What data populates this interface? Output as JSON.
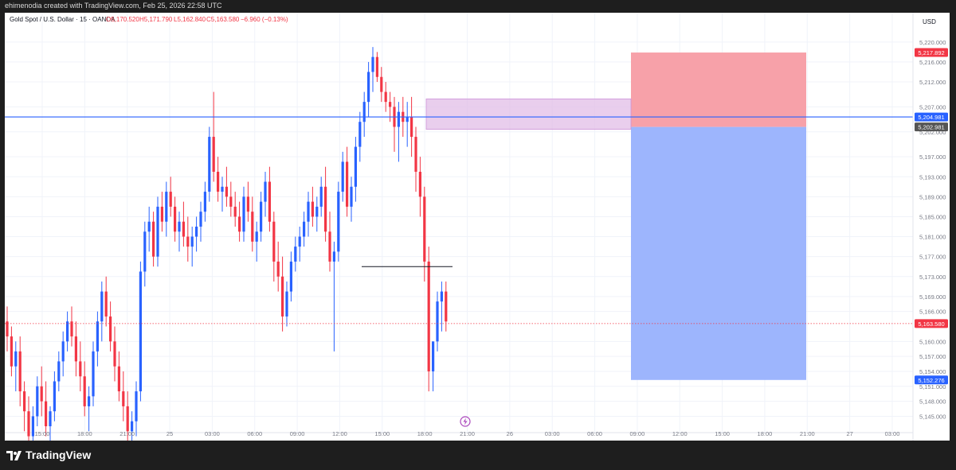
{
  "header": {
    "attribution": "ehimenodia created with TradingView.com, Feb 25, 2026 22:58 UTC"
  },
  "legend": {
    "symbol": "Gold Spot / U.S. Dollar · 15 · OANDA",
    "open": "O5,170.520",
    "high": "H5,171.790",
    "low": "L5,162.840",
    "close": "C5,163.580",
    "change": "−6.960 (−0.13%)"
  },
  "currency": "USD",
  "footer": {
    "brand": "TradingView"
  },
  "colors": {
    "up": "#2962ff",
    "down": "#f23645",
    "grid": "#f0f3fa",
    "horizontal_line": "#2962ff",
    "zone": "#e1bee7",
    "stop": "#f7a1a9",
    "target": "#9db5fd"
  },
  "chart_data": {
    "type": "candlestick",
    "yaxis": {
      "range": [
        5143,
        5223
      ],
      "ticks": [
        "5,220.000",
        "5,216.000",
        "5,212.000",
        "5,207.000",
        "5,202.000",
        "5,197.000",
        "5,193.000",
        "5,189.000",
        "5,185.000",
        "5,181.000",
        "5,177.000",
        "5,173.000",
        "5,169.000",
        "5,166.000",
        "5,160.000",
        "5,157.000",
        "5,154.000",
        "5,151.000",
        "5,148.000",
        "5,145.000"
      ]
    },
    "xaxis": {
      "ticks": [
        "15:00",
        "18:00",
        "21:00",
        "25",
        "03:00",
        "06:00",
        "09:00",
        "12:00",
        "15:00",
        "18:00",
        "21:00",
        "26",
        "03:00",
        "06:00",
        "09:00",
        "12:00",
        "15:00",
        "18:00",
        "21:00",
        "27",
        "03:00"
      ]
    },
    "price_labels": [
      {
        "value": 5217.892,
        "text": "5,217.892",
        "color": "#f23645"
      },
      {
        "value": 5204.981,
        "text": "5,204.981",
        "color": "#2962ff"
      },
      {
        "value": 5202.981,
        "text": "5,202.981",
        "color": "#555555"
      },
      {
        "value": 5163.58,
        "text": "5,163.580",
        "color": "#f23645"
      },
      {
        "value": 5152.276,
        "text": "5,152.276",
        "color": "#2962ff"
      }
    ],
    "horizontal_line": 5204.981,
    "last_price": 5163.58,
    "position": {
      "entry": 5202.981,
      "stop": 5217.892,
      "target": 5152.276
    },
    "zone": {
      "top": 5208.6,
      "bottom": 5202.5
    },
    "level_line": 5175.0,
    "candles": [
      [
        5164,
        5167,
        5158,
        5161
      ],
      [
        5161,
        5163,
        5153,
        5155
      ],
      [
        5155,
        5160,
        5150,
        5158
      ],
      [
        5158,
        5161,
        5147,
        5150
      ],
      [
        5150,
        5152,
        5142,
        5146
      ],
      [
        5146,
        5149,
        5138,
        5141
      ],
      [
        5141,
        5147,
        5136,
        5145
      ],
      [
        5145,
        5153,
        5143,
        5151
      ],
      [
        5151,
        5155,
        5145,
        5148
      ],
      [
        5148,
        5152,
        5141,
        5143
      ],
      [
        5143,
        5147,
        5140,
        5146
      ],
      [
        5146,
        5154,
        5144,
        5152
      ],
      [
        5152,
        5158,
        5150,
        5156
      ],
      [
        5156,
        5162,
        5153,
        5160
      ],
      [
        5160,
        5166,
        5158,
        5164
      ],
      [
        5164,
        5167,
        5159,
        5161
      ],
      [
        5161,
        5164,
        5153,
        5156
      ],
      [
        5156,
        5160,
        5150,
        5153
      ],
      [
        5153,
        5156,
        5145,
        5147
      ],
      [
        5147,
        5151,
        5142,
        5149
      ],
      [
        5149,
        5160,
        5147,
        5158
      ],
      [
        5158,
        5166,
        5155,
        5164
      ],
      [
        5164,
        5172,
        5160,
        5170
      ],
      [
        5170,
        5173,
        5163,
        5165
      ],
      [
        5165,
        5168,
        5158,
        5160
      ],
      [
        5160,
        5163,
        5152,
        5155
      ],
      [
        5155,
        5158,
        5148,
        5150
      ],
      [
        5150,
        5154,
        5144,
        5147
      ],
      [
        5147,
        5150,
        5140,
        5142
      ],
      [
        5142,
        5146,
        5137,
        5144
      ],
      [
        5144,
        5152,
        5141,
        5150
      ],
      [
        5150,
        5176,
        5148,
        5174
      ],
      [
        5174,
        5184,
        5171,
        5182
      ],
      [
        5182,
        5187,
        5178,
        5184
      ],
      [
        5184,
        5186,
        5175,
        5177
      ],
      [
        5177,
        5189,
        5175,
        5187
      ],
      [
        5187,
        5190,
        5182,
        5184
      ],
      [
        5184,
        5192,
        5181,
        5190
      ],
      [
        5190,
        5193,
        5185,
        5187
      ],
      [
        5187,
        5189,
        5180,
        5182
      ],
      [
        5182,
        5186,
        5178,
        5184
      ],
      [
        5184,
        5188,
        5179,
        5181
      ],
      [
        5181,
        5185,
        5176,
        5179
      ],
      [
        5179,
        5183,
        5175,
        5181
      ],
      [
        5181,
        5185,
        5178,
        5183
      ],
      [
        5183,
        5188,
        5180,
        5186
      ],
      [
        5186,
        5192,
        5184,
        5190
      ],
      [
        5190,
        5203,
        5188,
        5201
      ],
      [
        5201,
        5210,
        5192,
        5194
      ],
      [
        5194,
        5197,
        5188,
        5190
      ],
      [
        5190,
        5193,
        5186,
        5191
      ],
      [
        5191,
        5195,
        5187,
        5189
      ],
      [
        5189,
        5192,
        5185,
        5187
      ],
      [
        5187,
        5190,
        5183,
        5185
      ],
      [
        5185,
        5188,
        5180,
        5182
      ],
      [
        5182,
        5191,
        5180,
        5189
      ],
      [
        5189,
        5192,
        5184,
        5186
      ],
      [
        5186,
        5189,
        5178,
        5180
      ],
      [
        5180,
        5184,
        5176,
        5182
      ],
      [
        5182,
        5190,
        5180,
        5188
      ],
      [
        5188,
        5194,
        5185,
        5192
      ],
      [
        5192,
        5195,
        5182,
        5184
      ],
      [
        5184,
        5186,
        5172,
        5176
      ],
      [
        5176,
        5180,
        5170,
        5173
      ],
      [
        5173,
        5177,
        5162,
        5165
      ],
      [
        5165,
        5172,
        5163,
        5170
      ],
      [
        5170,
        5178,
        5168,
        5176
      ],
      [
        5176,
        5181,
        5174,
        5179
      ],
      [
        5179,
        5183,
        5176,
        5181
      ],
      [
        5181,
        5186,
        5179,
        5184
      ],
      [
        5184,
        5190,
        5181,
        5188
      ],
      [
        5188,
        5191,
        5183,
        5185
      ],
      [
        5185,
        5189,
        5182,
        5187
      ],
      [
        5187,
        5193,
        5185,
        5191
      ],
      [
        5191,
        5195,
        5180,
        5182
      ],
      [
        5182,
        5186,
        5174,
        5176
      ],
      [
        5176,
        5180,
        5158,
        5178
      ],
      [
        5178,
        5192,
        5176,
        5190
      ],
      [
        5190,
        5198,
        5188,
        5196
      ],
      [
        5196,
        5199,
        5185,
        5187
      ],
      [
        5187,
        5193,
        5184,
        5191
      ],
      [
        5191,
        5201,
        5188,
        5199
      ],
      [
        5199,
        5206,
        5196,
        5204
      ],
      [
        5204,
        5210,
        5201,
        5208
      ],
      [
        5208,
        5216,
        5205,
        5214
      ],
      [
        5214,
        5219,
        5210,
        5217
      ],
      [
        5217,
        5218,
        5212,
        5213
      ],
      [
        5213,
        5215,
        5208,
        5210
      ],
      [
        5210,
        5212,
        5206,
        5208
      ],
      [
        5208,
        5210,
        5204,
        5207
      ],
      [
        5207,
        5209,
        5198,
        5203
      ],
      [
        5203,
        5208,
        5196,
        5206
      ],
      [
        5206,
        5209,
        5201,
        5204
      ],
      [
        5204,
        5208,
        5199,
        5205
      ],
      [
        5205,
        5209,
        5197,
        5201
      ],
      [
        5201,
        5203,
        5190,
        5194
      ],
      [
        5194,
        5197,
        5185,
        5189
      ],
      [
        5189,
        5191,
        5172,
        5176
      ],
      [
        5176,
        5179,
        5150,
        5154
      ],
      [
        5154,
        5160,
        5150,
        5160
      ],
      [
        5160,
        5170,
        5158,
        5168
      ],
      [
        5168,
        5172,
        5162,
        5170
      ],
      [
        5170,
        5172,
        5162,
        5164
      ]
    ]
  }
}
